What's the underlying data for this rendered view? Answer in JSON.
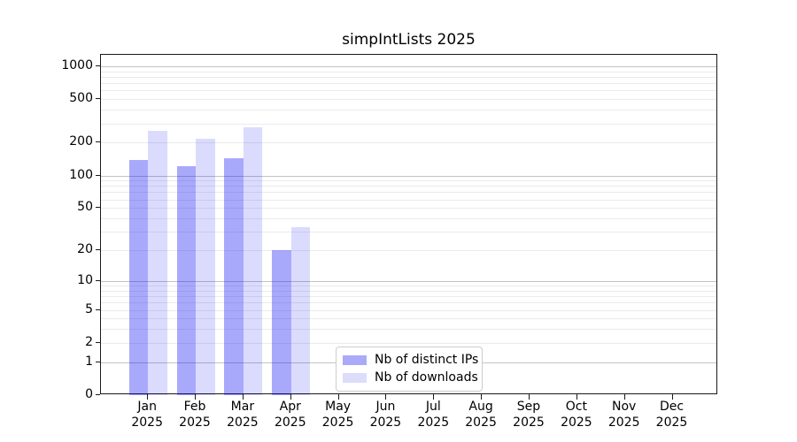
{
  "chart_data": {
    "type": "bar",
    "title": "simpIntLists 2025",
    "categories": [
      "Jan 2025",
      "Feb 2025",
      "Mar 2025",
      "Apr 2025",
      "May 2025",
      "Jun 2025",
      "Jul 2025",
      "Aug 2025",
      "Sep 2025",
      "Oct 2025",
      "Nov 2025",
      "Dec 2025"
    ],
    "series": [
      {
        "name": "Nb of distinct IPs",
        "color": "#aaaaf8",
        "bar_fill": "rgba(10,10,245,0.35)",
        "values": [
          140,
          122,
          144,
          20,
          0,
          0,
          0,
          0,
          0,
          0,
          0,
          0
        ]
      },
      {
        "name": "Nb of downloads",
        "color": "#dcdcfb",
        "bar_fill": "rgba(10,10,245,0.145)",
        "values": [
          257,
          217,
          278,
          33,
          0,
          0,
          0,
          0,
          0,
          0,
          0,
          0
        ]
      }
    ],
    "y_ticks": [
      0,
      1,
      2,
      5,
      10,
      20,
      50,
      100,
      200,
      500,
      1000
    ],
    "y_major_grid": [
      1,
      10,
      100,
      1000
    ],
    "y_scale": "log10(value+1)",
    "ylim": [
      0,
      1270
    ],
    "xlabel": "",
    "ylabel": "",
    "grid": true,
    "legend_position": "lower-center-left"
  }
}
